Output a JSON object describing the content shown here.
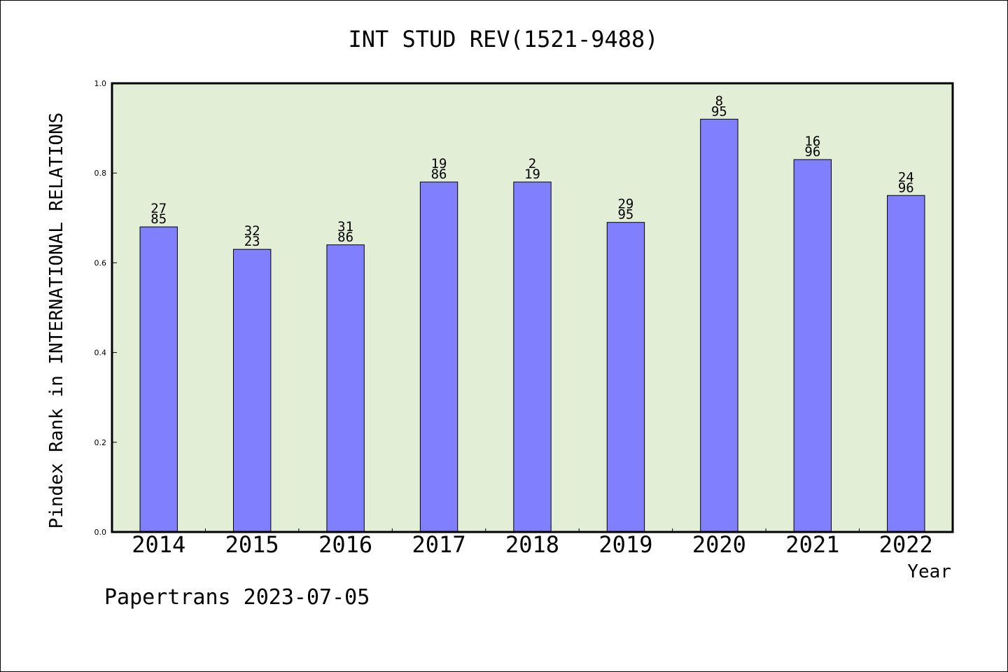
{
  "chart_data": {
    "type": "bar",
    "title": "INT STUD REV(1521-9488)",
    "ylabel": "Pindex Rank in INTERNATIONAL RELATIONS",
    "xlabel": "Year",
    "categories": [
      "2014",
      "2015",
      "2016",
      "2017",
      "2018",
      "2019",
      "2020",
      "2021",
      "2022"
    ],
    "values": [
      0.68,
      0.63,
      0.64,
      0.78,
      0.78,
      0.69,
      0.92,
      0.83,
      0.75
    ],
    "labels_top": [
      "27",
      "32",
      "31",
      "19",
      "2",
      "29",
      "8",
      "16",
      "24"
    ],
    "labels_bottom": [
      "85",
      "23",
      "86",
      "86",
      "19",
      "95",
      "95",
      "96",
      "96"
    ],
    "ylim": [
      0,
      1.0
    ],
    "yticks": [
      "0.0",
      "0.2",
      "0.4",
      "0.6",
      "0.8",
      "1.0"
    ],
    "grid": false,
    "colors": {
      "plot_background": "#e2efd6",
      "bar": "#8080ff",
      "bar_edge": "#000000"
    }
  },
  "footer": "Papertrans 2023-07-05"
}
